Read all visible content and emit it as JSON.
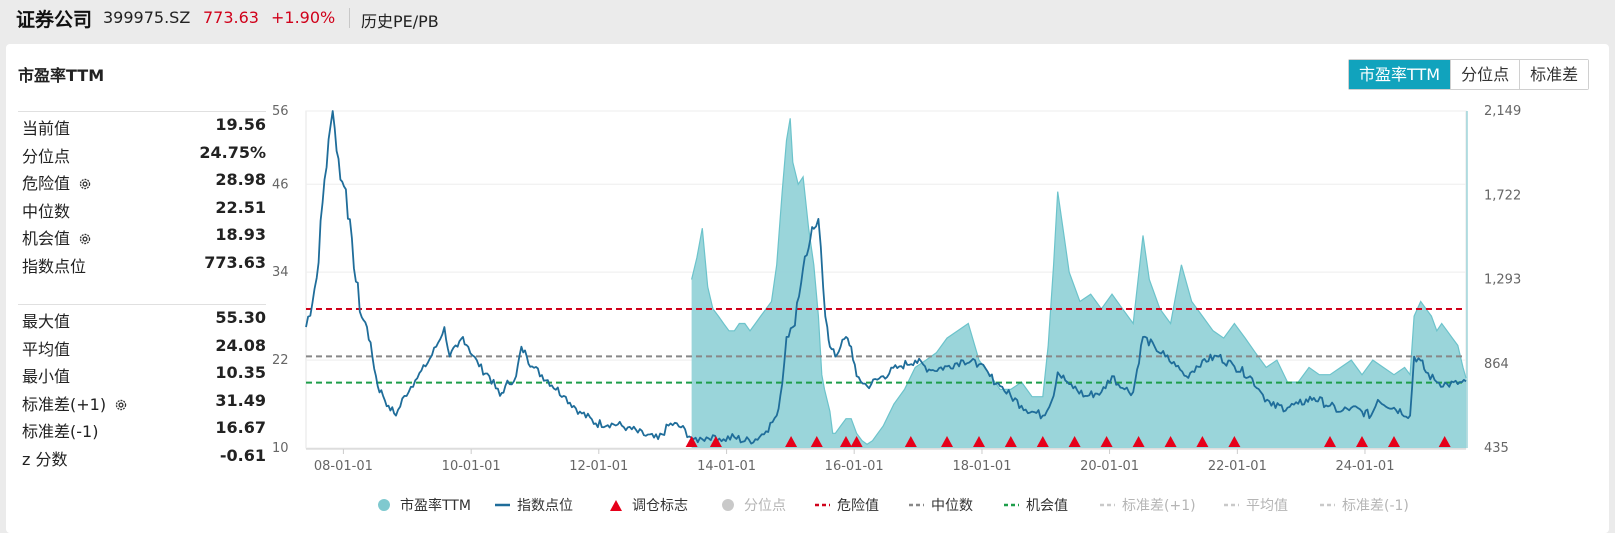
{
  "header": {
    "name": "证券公司",
    "code": "399975.SZ",
    "price": "773.63",
    "change": "+1.90%",
    "link": "历史PE/PB"
  },
  "panel": {
    "title": "市盈率TTM",
    "tabs": [
      "市盈率TTM",
      "分位点",
      "标准差"
    ],
    "active_tab": 0
  },
  "stats_top": [
    {
      "label": "当前值",
      "value": "19.56",
      "gear": false
    },
    {
      "label": "分位点",
      "value": "24.75%",
      "gear": false
    },
    {
      "label": "危险值",
      "value": "28.98",
      "gear": true
    },
    {
      "label": "中位数",
      "value": "22.51",
      "gear": false
    },
    {
      "label": "机会值",
      "value": "18.93",
      "gear": true
    },
    {
      "label": "指数点位",
      "value": "773.63",
      "gear": false
    }
  ],
  "stats_bottom": [
    {
      "label": "最大值",
      "value": "55.30",
      "gear": false
    },
    {
      "label": "平均值",
      "value": "24.08",
      "gear": false
    },
    {
      "label": "最小值",
      "value": "10.35",
      "gear": false
    },
    {
      "label": "标准差(+1)",
      "value": "31.49",
      "gear": true
    },
    {
      "label": "标准差(-1)",
      "value": "16.67",
      "gear": false
    },
    {
      "label": "z 分数",
      "value": "-0.61",
      "gear": false
    }
  ],
  "colors": {
    "accent": "#11a3bd",
    "pe_fill": "#8fd0d6",
    "pe_line": "#6cc3cb",
    "index_line": "#1f6d9a",
    "danger": "#d0021b",
    "median": "#888888",
    "opportunity": "#1e9e4a",
    "disabled": "#c9c9c9",
    "marker": "#e6001a"
  },
  "chart_data": {
    "type": "line",
    "x_range": [
      "2007-06-01",
      "2025-08-01"
    ],
    "x_ticks": [
      "08-01-01",
      "10-01-01",
      "12-01-01",
      "14-01-01",
      "16-01-01",
      "18-01-01",
      "20-01-01",
      "22-01-01",
      "24-01-01"
    ],
    "y_left_ticks": [
      10,
      22,
      34,
      46,
      56
    ],
    "y_left_range": [
      10,
      56
    ],
    "y_right_ticks": [
      "435",
      "864",
      "1,293",
      "1,722",
      "2,149"
    ],
    "y_right_range": [
      435,
      2149
    ],
    "reference_lines": [
      {
        "name": "危险值",
        "value": 28.98
      },
      {
        "name": "中位数",
        "value": 22.51
      },
      {
        "name": "机会值",
        "value": 18.93
      }
    ],
    "series": [
      {
        "name": "市盈率TTM",
        "type": "area",
        "axis": "left",
        "x": [
          "2013-06-15",
          "2013-07-15",
          "2013-08-15",
          "2013-09-15",
          "2013-10-15",
          "2013-11-15",
          "2013-12-15",
          "2014-01-15",
          "2014-02-15",
          "2014-03-15",
          "2014-04-15",
          "2014-05-15",
          "2014-06-15",
          "2014-07-15",
          "2014-08-15",
          "2014-09-15",
          "2014-10-15",
          "2014-11-15",
          "2014-12-10",
          "2014-12-31",
          "2015-01-15",
          "2015-02-15",
          "2015-03-15",
          "2015-04-15",
          "2015-05-15",
          "2015-06-10",
          "2015-06-30",
          "2015-07-15",
          "2015-08-15",
          "2015-08-31",
          "2015-09-15",
          "2015-10-15",
          "2015-11-15",
          "2015-12-15",
          "2016-01-15",
          "2016-02-15",
          "2016-03-15",
          "2016-04-15",
          "2016-05-15",
          "2016-06-15",
          "2016-08-15",
          "2016-10-15",
          "2016-12-15",
          "2017-02-15",
          "2017-04-15",
          "2017-06-15",
          "2017-08-15",
          "2017-10-15",
          "2017-12-15",
          "2018-02-15",
          "2018-04-15",
          "2018-06-15",
          "2018-08-15",
          "2018-10-15",
          "2018-12-15",
          "2019-01-15",
          "2019-02-15",
          "2019-03-10",
          "2019-04-15",
          "2019-05-15",
          "2019-07-15",
          "2019-09-15",
          "2019-11-15",
          "2020-01-15",
          "2020-03-15",
          "2020-05-15",
          "2020-07-10",
          "2020-08-15",
          "2020-10-15",
          "2020-12-15",
          "2021-02-15",
          "2021-04-15",
          "2021-06-15",
          "2021-08-15",
          "2021-10-15",
          "2021-12-15",
          "2022-02-15",
          "2022-04-15",
          "2022-06-15",
          "2022-08-15",
          "2022-10-15",
          "2022-12-15",
          "2023-02-15",
          "2023-04-15",
          "2023-06-15",
          "2023-08-15",
          "2023-10-15",
          "2023-12-15",
          "2024-02-15",
          "2024-04-15",
          "2024-06-15",
          "2024-08-15",
          "2024-09-15",
          "2024-10-08",
          "2024-11-15",
          "2024-12-15",
          "2025-01-15",
          "2025-02-15",
          "2025-03-15",
          "2025-04-15",
          "2025-05-15",
          "2025-06-15",
          "2025-07-15",
          "2025-08-01"
        ],
        "values": [
          33,
          36,
          40,
          32,
          29,
          28,
          27,
          26,
          26,
          27,
          27,
          26,
          27,
          28,
          29,
          30,
          35,
          45,
          52,
          55,
          49,
          46,
          47,
          40,
          35,
          28,
          20,
          18,
          15,
          12,
          12,
          13,
          14,
          14,
          12,
          11,
          10.5,
          11,
          12,
          13,
          16,
          18,
          21,
          22,
          23,
          25,
          26,
          27,
          22,
          20,
          18,
          18,
          19,
          17,
          17,
          24,
          35,
          45,
          39,
          34,
          30,
          31,
          29,
          31,
          29,
          27,
          39,
          33,
          29,
          27,
          35,
          30,
          28,
          26,
          25,
          27,
          25,
          23,
          21,
          22,
          19,
          19,
          21,
          20,
          20,
          21,
          22,
          20,
          22,
          21,
          20,
          21,
          20,
          28,
          30,
          29,
          28,
          26,
          27,
          26,
          25,
          24,
          21,
          19.56
        ]
      },
      {
        "name": "指数点位",
        "type": "line",
        "axis": "right",
        "x": [
          "2007-06-01",
          "2007-08-01",
          "2007-09-15",
          "2007-11-01",
          "2007-12-15",
          "2008-01-15",
          "2008-03-01",
          "2008-04-15",
          "2008-05-15",
          "2008-06-15",
          "2008-07-15",
          "2008-08-15",
          "2008-09-15",
          "2008-10-28",
          "2008-12-15",
          "2009-02-15",
          "2009-04-15",
          "2009-06-15",
          "2009-08-01",
          "2009-08-31",
          "2009-10-15",
          "2009-11-15",
          "2009-12-15",
          "2010-02-15",
          "2010-04-15",
          "2010-06-15",
          "2010-07-15",
          "2010-09-15",
          "2010-10-15",
          "2010-11-15",
          "2010-12-15",
          "2011-03-15",
          "2011-06-15",
          "2011-09-15",
          "2011-12-15",
          "2012-03-15",
          "2012-06-15",
          "2012-09-15",
          "2012-12-05",
          "2013-02-15",
          "2013-04-15",
          "2013-06-25",
          "2013-08-15",
          "2013-10-15",
          "2013-12-15",
          "2014-02-15",
          "2014-04-15",
          "2014-06-15",
          "2014-08-15",
          "2014-10-15",
          "2014-11-15",
          "2014-12-10",
          "2015-01-15",
          "2015-03-15",
          "2015-04-15",
          "2015-05-15",
          "2015-06-10",
          "2015-07-08",
          "2015-07-31",
          "2015-08-15",
          "2015-09-15",
          "2015-10-15",
          "2015-11-15",
          "2015-12-15",
          "2016-01-15",
          "2016-03-15",
          "2016-06-15",
          "2016-09-15",
          "2016-12-15",
          "2017-03-15",
          "2017-06-15",
          "2017-09-15",
          "2017-12-15",
          "2018-02-15",
          "2018-04-15",
          "2018-06-15",
          "2018-08-15",
          "2018-10-15",
          "2018-12-15",
          "2019-02-15",
          "2019-03-10",
          "2019-05-15",
          "2019-08-15",
          "2019-11-15",
          "2020-01-15",
          "2020-03-15",
          "2020-05-15",
          "2020-07-10",
          "2020-09-15",
          "2020-11-15",
          "2021-01-15",
          "2021-03-15",
          "2021-06-15",
          "2021-09-15",
          "2021-12-15",
          "2022-03-15",
          "2022-05-15",
          "2022-07-15",
          "2022-10-15",
          "2022-12-15",
          "2023-03-15",
          "2023-06-15",
          "2023-08-15",
          "2023-10-15",
          "2023-12-15",
          "2024-02-05",
          "2024-03-15",
          "2024-06-15",
          "2024-09-15",
          "2024-10-08",
          "2024-11-15",
          "2024-12-15",
          "2025-02-15",
          "2025-04-15",
          "2025-06-15",
          "2025-08-01"
        ],
        "values": [
          1050,
          1300,
          1800,
          2149,
          1800,
          1750,
          1350,
          1100,
          1050,
          900,
          750,
          700,
          650,
          600,
          700,
          780,
          850,
          950,
          1050,
          900,
          950,
          1000,
          950,
          850,
          800,
          700,
          750,
          800,
          950,
          900,
          850,
          780,
          700,
          620,
          560,
          560,
          540,
          500,
          480,
          560,
          540,
          480,
          480,
          500,
          480,
          490,
          470,
          480,
          520,
          600,
          760,
          1000,
          1050,
          1350,
          1450,
          1550,
          1600,
          1250,
          1050,
          950,
          900,
          950,
          1000,
          950,
          800,
          750,
          800,
          850,
          880,
          830,
          850,
          880,
          860,
          800,
          750,
          700,
          650,
          620,
          600,
          700,
          820,
          760,
          700,
          720,
          800,
          740,
          720,
          1000,
          950,
          900,
          850,
          800,
          880,
          900,
          850,
          800,
          720,
          650,
          640,
          660,
          690,
          650,
          620,
          640,
          620,
          600,
          680,
          640,
          600,
          900,
          880,
          820,
          770,
          760,
          760,
          773.63
        ]
      },
      {
        "name": "调仓标志",
        "type": "scatter",
        "axis": "left",
        "x": [
          "2013-06-15",
          "2013-11-01",
          "2015-01-05",
          "2015-06-01",
          "2015-11-15",
          "2016-01-15",
          "2016-11-20",
          "2017-06-15",
          "2017-12-15",
          "2018-06-15",
          "2018-12-15",
          "2019-06-15",
          "2019-12-15",
          "2020-06-15",
          "2020-12-15",
          "2021-06-15",
          "2021-12-15",
          "2023-06-15",
          "2023-12-15",
          "2024-06-15",
          "2025-04-01"
        ],
        "values": [
          10,
          10,
          10,
          10,
          10,
          10,
          10,
          10,
          10,
          10,
          10,
          10,
          10,
          10,
          10,
          10,
          10,
          10,
          10,
          10,
          10
        ]
      },
      {
        "name": "分位点",
        "type": "line",
        "values": []
      },
      {
        "name": "危险值",
        "type": "line",
        "values": [
          28.98
        ]
      },
      {
        "name": "中位数",
        "type": "line",
        "values": [
          22.51
        ]
      },
      {
        "name": "机会值",
        "type": "line",
        "values": [
          18.93
        ]
      },
      {
        "name": "标准差(+1)",
        "type": "line",
        "values": []
      },
      {
        "name": "平均值",
        "type": "line",
        "values": []
      },
      {
        "name": "标准差(-1)",
        "type": "line",
        "values": []
      }
    ],
    "legend": {
      "placement": "bottom",
      "items": [
        {
          "label": "市盈率TTM",
          "symbol": "circle",
          "color": "#7fc9cf",
          "enabled": true
        },
        {
          "label": "指数点位",
          "symbol": "line",
          "color": "#1f6d9a",
          "enabled": true
        },
        {
          "label": "调仓标志",
          "symbol": "triangle",
          "color": "#e6001a",
          "enabled": true
        },
        {
          "label": "分位点",
          "symbol": "circle",
          "color": "#c9c9c9",
          "enabled": false
        },
        {
          "label": "危险值",
          "symbol": "dash",
          "color": "#d0021b",
          "enabled": true
        },
        {
          "label": "中位数",
          "symbol": "dash",
          "color": "#888888",
          "enabled": true
        },
        {
          "label": "机会值",
          "symbol": "dash",
          "color": "#1e9e4a",
          "enabled": true
        },
        {
          "label": "标准差(+1)",
          "symbol": "dash",
          "color": "#c9c9c9",
          "enabled": false
        },
        {
          "label": "平均值",
          "symbol": "dash",
          "color": "#c9c9c9",
          "enabled": false
        },
        {
          "label": "标准差(-1)",
          "symbol": "dash",
          "color": "#c9c9c9",
          "enabled": false
        }
      ]
    },
    "grid": true
  }
}
